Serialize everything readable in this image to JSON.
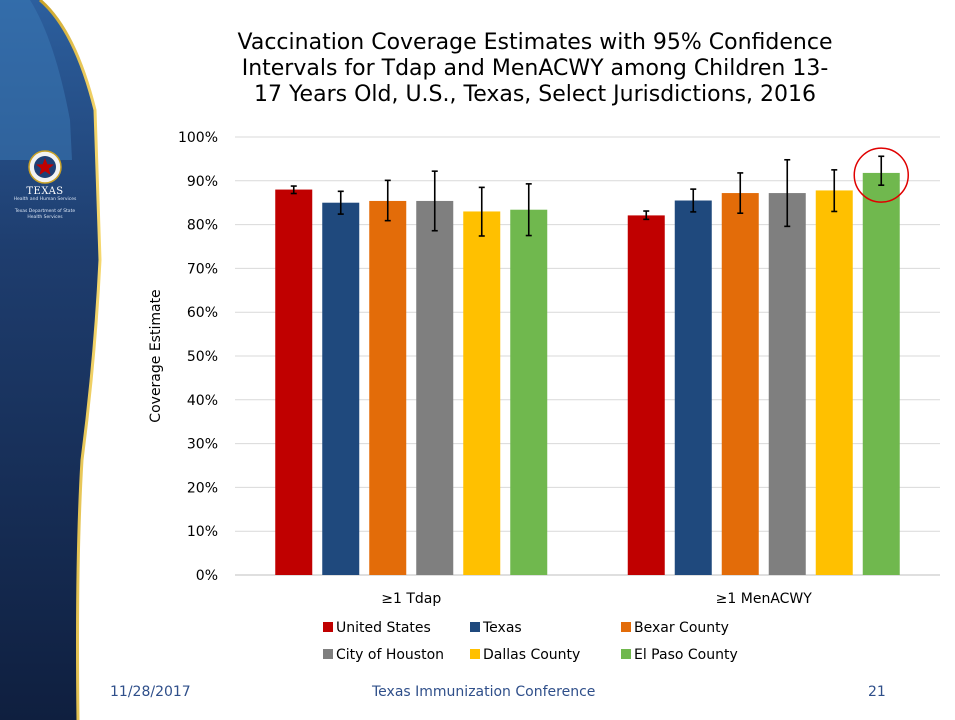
{
  "org": {
    "name": "TEXAS",
    "line1": "Health and Human Services",
    "line2": "Texas Department of State",
    "line3": "Health Services"
  },
  "chart_data": {
    "type": "bar",
    "title": "Vaccination Coverage Estimates with 95% Confidence Intervals for Tdap and MenACWY among Children 13-17 Years Old, U.S., Texas, Select Jurisdictions, 2016",
    "title_lines": [
      "Vaccination Coverage Estimates with 95% Confidence",
      "Intervals for Tdap and MenACWY among Children 13-",
      "17 Years Old, U.S., Texas, Select Jurisdictions, 2016"
    ],
    "xlabel": "",
    "ylabel": "Coverage Estimate",
    "ylim": [
      0,
      100
    ],
    "y_ticks": [
      "0%",
      "10%",
      "20%",
      "30%",
      "40%",
      "50%",
      "60%",
      "70%",
      "80%",
      "90%",
      "100%"
    ],
    "categories": [
      "≥1 Tdap",
      "≥1 MenACWY"
    ],
    "legend_position": "bottom",
    "grid": true,
    "highlight": {
      "series": "El Paso County",
      "category": "≥1 MenACWY",
      "marker": "red-circle"
    },
    "series": [
      {
        "name": "United States",
        "color": "#C00000",
        "values": [
          88.0,
          82.1
        ],
        "ci_low": [
          87.1,
          81.2
        ],
        "ci_high": [
          88.8,
          83.1
        ]
      },
      {
        "name": "Texas",
        "color": "#1F497D",
        "values": [
          85.0,
          85.5
        ],
        "ci_low": [
          82.4,
          82.9
        ],
        "ci_high": [
          87.6,
          88.1
        ]
      },
      {
        "name": "Bexar County",
        "color": "#E36C09",
        "values": [
          85.4,
          87.2
        ],
        "ci_low": [
          80.9,
          82.6
        ],
        "ci_high": [
          90.1,
          91.8
        ]
      },
      {
        "name": "City of Houston",
        "color": "#7F7F7F",
        "values": [
          85.4,
          87.2
        ],
        "ci_low": [
          78.6,
          79.6
        ],
        "ci_high": [
          92.2,
          94.8
        ]
      },
      {
        "name": "Dallas County",
        "color": "#FFC000",
        "values": [
          83.0,
          87.8
        ],
        "ci_low": [
          77.4,
          83.0
        ],
        "ci_high": [
          88.5,
          92.5
        ]
      },
      {
        "name": "El Paso County",
        "color": "#70B84E",
        "values": [
          83.4,
          91.8
        ],
        "ci_low": [
          77.5,
          89.0
        ],
        "ci_high": [
          89.3,
          95.6
        ]
      }
    ]
  },
  "footer": {
    "date": "11/28/2017",
    "title": "Texas Immunization Conference",
    "page": "21"
  }
}
